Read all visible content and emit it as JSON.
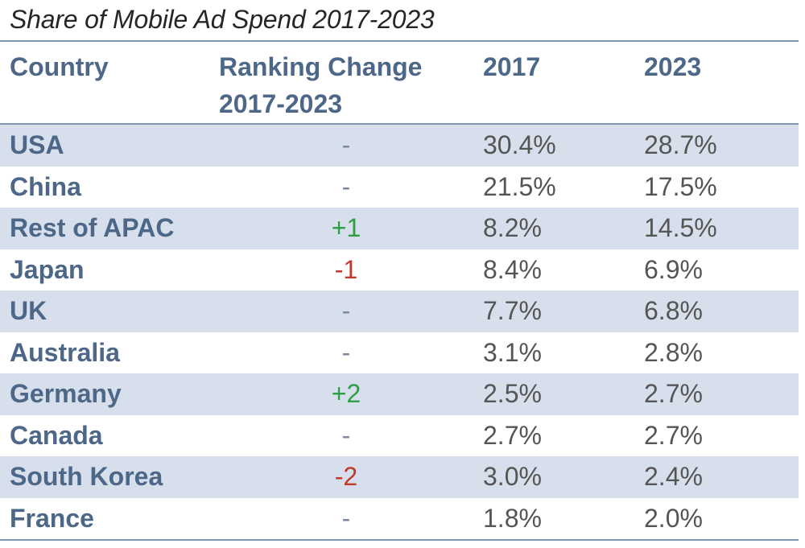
{
  "chart_data": {
    "type": "table",
    "title": "Share of Mobile Ad Spend 2017-2023",
    "columns": [
      "Country",
      "Ranking Change 2017-2023",
      "2017",
      "2023"
    ],
    "header": {
      "country": "Country",
      "change_line1": "Ranking Change",
      "change_line2": "2017-2023",
      "y2017": "2017",
      "y2023": "2023"
    },
    "rows": [
      {
        "country": "USA",
        "change": "-",
        "y2017": "30.4%",
        "y2023": "28.7%"
      },
      {
        "country": "China",
        "change": "-",
        "y2017": "21.5%",
        "y2023": "17.5%"
      },
      {
        "country": "Rest of APAC",
        "change": "+1",
        "y2017": "8.2%",
        "y2023": "14.5%"
      },
      {
        "country": "Japan",
        "change": "-1",
        "y2017": "8.4%",
        "y2023": "6.9%"
      },
      {
        "country": "UK",
        "change": "-",
        "y2017": "7.7%",
        "y2023": "6.8%"
      },
      {
        "country": "Australia",
        "change": "-",
        "y2017": "3.1%",
        "y2023": "2.8%"
      },
      {
        "country": "Germany",
        "change": "+2",
        "y2017": "2.5%",
        "y2023": "2.7%"
      },
      {
        "country": "Canada",
        "change": "-",
        "y2017": "2.7%",
        "y2023": "2.7%"
      },
      {
        "country": "South Korea",
        "change": "-2",
        "y2017": "3.0%",
        "y2023": "2.4%"
      },
      {
        "country": "France",
        "change": "-",
        "y2017": "1.8%",
        "y2023": "2.0%"
      }
    ]
  },
  "colors": {
    "header_text": "#4d6789",
    "row_shade": "#d7dfec",
    "rule": "#7f97b2",
    "positive": "#2ea043",
    "negative": "#c0392b",
    "neutral": "#7b8aa0"
  }
}
